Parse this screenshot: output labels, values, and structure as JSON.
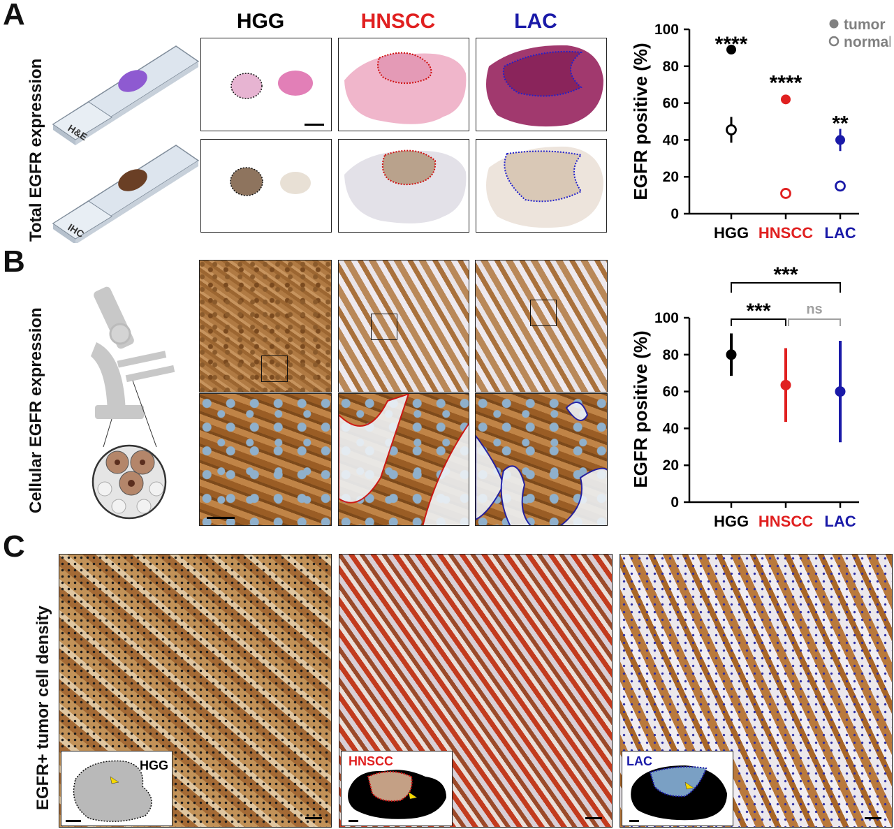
{
  "panels": {
    "a": {
      "letter": "A",
      "side_title": "Total EGFR expression",
      "slide_he_label": "H&E",
      "slide_ihc_label": "IHC",
      "col_hgg": "HGG",
      "col_hnscc": "HNSCC",
      "col_lac": "LAC"
    },
    "b": {
      "letter": "B",
      "side_title": "Cellular EGFR expression"
    },
    "c": {
      "letter": "C",
      "side_title": "EGFR+ tumor cell density",
      "inset_hgg": "HGG",
      "inset_hnscc": "HNSCC",
      "inset_lac": "LAC"
    }
  },
  "colors": {
    "hgg": "#000000",
    "hnscc": "#e02020",
    "lac": "#1a1aa8",
    "ns": "#a0a0a0",
    "legend": "#808080"
  },
  "chart_data": [
    {
      "type": "scatter",
      "panel": "A",
      "categories": [
        "HGG",
        "HNSCC",
        "LAC"
      ],
      "ylabel": "EGFR positive (%)",
      "ylim": [
        0,
        100
      ],
      "yticks": [
        0,
        20,
        40,
        60,
        80,
        100
      ],
      "legend": [
        "tumor",
        "normal"
      ],
      "legend_position": "top-right",
      "series": [
        {
          "name": "tumor",
          "values": [
            89,
            62,
            40
          ],
          "errors": [
            1,
            1,
            6
          ]
        },
        {
          "name": "normal",
          "values": [
            45.5,
            11,
            15
          ],
          "errors": [
            7,
            1.5,
            2.5
          ]
        }
      ],
      "significance": [
        "****",
        "****",
        "**"
      ]
    },
    {
      "type": "scatter",
      "panel": "B",
      "categories": [
        "HGG",
        "HNSCC",
        "LAC"
      ],
      "ylabel": "EGFR positive (%)",
      "ylim": [
        0,
        100
      ],
      "yticks": [
        0,
        20,
        40,
        60,
        80,
        100
      ],
      "series": [
        {
          "values": [
            80,
            63.5,
            60
          ],
          "errors": [
            11.5,
            20,
            27.5
          ]
        }
      ],
      "brackets": [
        {
          "from": 0,
          "to": 1,
          "label": "***"
        },
        {
          "from": 1,
          "to": 2,
          "label": "ns"
        },
        {
          "from": 0,
          "to": 2,
          "label": "***"
        }
      ]
    }
  ]
}
